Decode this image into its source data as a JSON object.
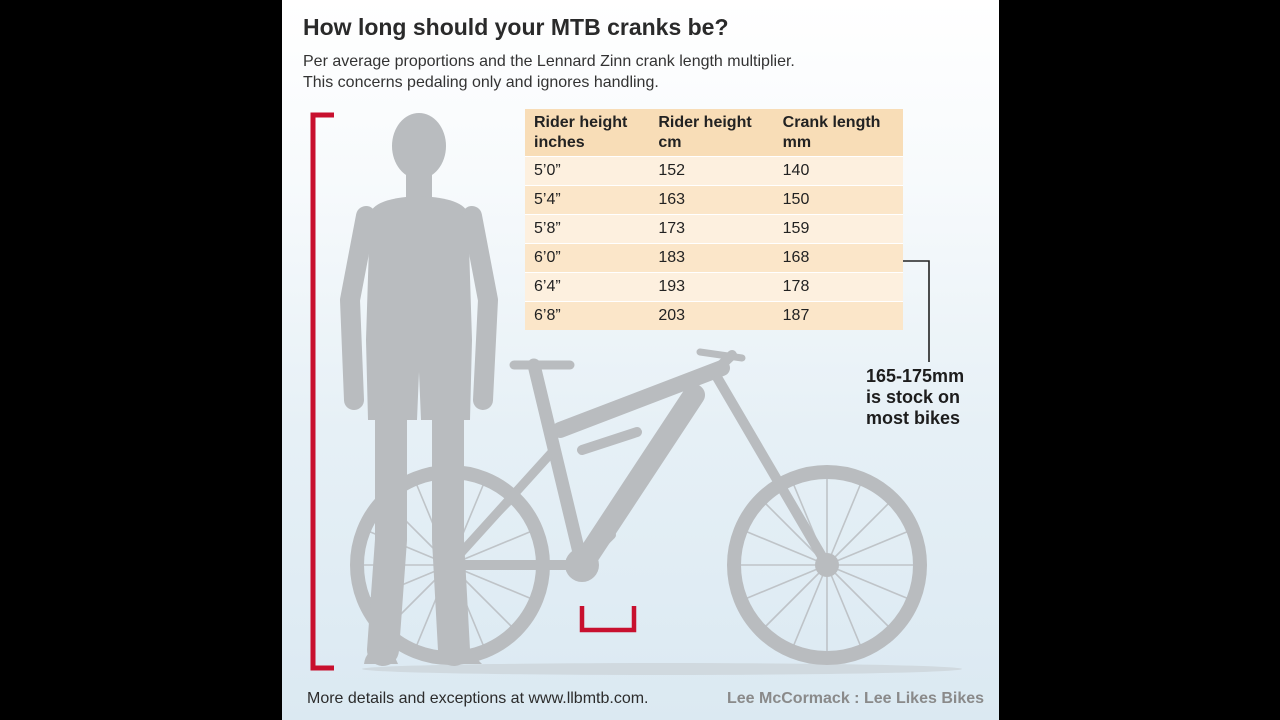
{
  "title": "How long should your MTB cranks be?",
  "subtitle_line1": "Per average proportions and the Lennard Zinn crank length multiplier.",
  "subtitle_line2": "This concerns pedaling only and ignores handling.",
  "table": {
    "headers": [
      {
        "line1": "Rider height",
        "line2": "inches"
      },
      {
        "line1": "Rider height",
        "line2": "cm"
      },
      {
        "line1": "Crank length",
        "line2": "mm"
      }
    ],
    "rows": [
      {
        "inches": "5’0”",
        "cm": "152",
        "crank": "140"
      },
      {
        "inches": "5’4”",
        "cm": "163",
        "crank": "150"
      },
      {
        "inches": "5’8”",
        "cm": "173",
        "crank": "159"
      },
      {
        "inches": "6’0”",
        "cm": "183",
        "crank": "168"
      },
      {
        "inches": "6’4”",
        "cm": "193",
        "crank": "178"
      },
      {
        "inches": "6’8”",
        "cm": "203",
        "crank": "187"
      }
    ]
  },
  "callout": {
    "line1": "165-175mm",
    "line2": "is stock on",
    "line3": "most bikes"
  },
  "footer_left": "More details and exceptions at www.llbmtb.com.",
  "footer_right": "Lee McCormack : Lee Likes Bikes",
  "colors": {
    "accent_red": "#c8102e",
    "header_bg": "#f8ddb7",
    "row_light": "#fdf0df",
    "row_dark": "#fbe6c9",
    "silhouette": "#b9bcbf"
  }
}
